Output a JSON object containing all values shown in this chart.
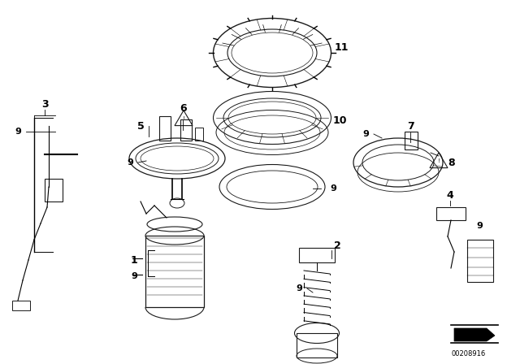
{
  "bg_color": "#ffffff",
  "line_color": "#1a1a1a",
  "watermark": "00208916",
  "fig_w": 6.4,
  "fig_h": 4.48,
  "dpi": 100
}
